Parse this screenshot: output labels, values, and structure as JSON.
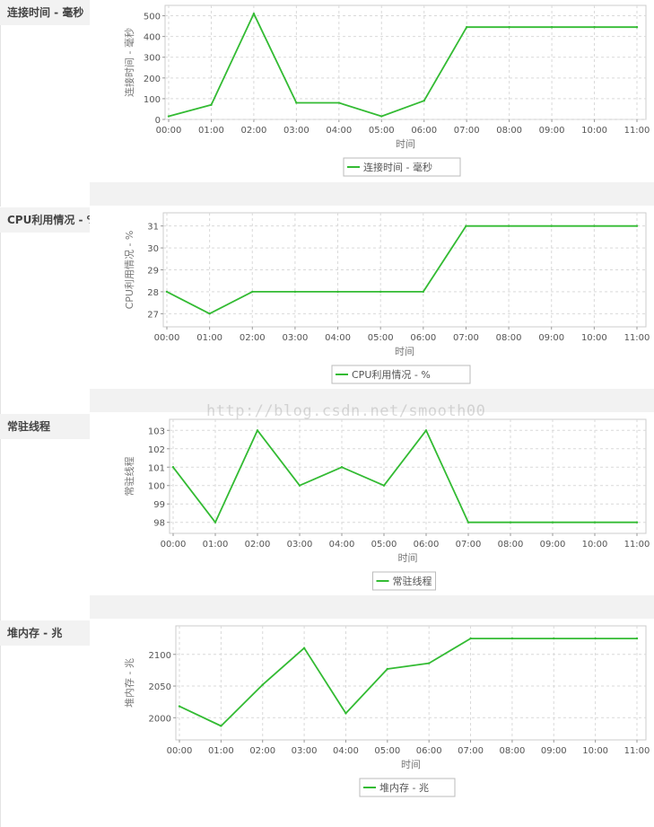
{
  "watermark": "http://blog.csdn.net/smooth00",
  "colors": {
    "line": "#33bb33",
    "grid": "#d9d9d9",
    "label_bg": "#f2f2f2"
  },
  "chart_data": [
    {
      "type": "line",
      "label": "连接时间 - 毫秒",
      "categories": [
        "00:00",
        "01:00",
        "02:00",
        "03:00",
        "04:00",
        "05:00",
        "06:00",
        "07:00",
        "08:00",
        "09:00",
        "10:00",
        "11:00"
      ],
      "series": [
        {
          "name": "连接时间 - 毫秒",
          "values": [
            15,
            70,
            510,
            80,
            80,
            15,
            90,
            445,
            445,
            445,
            445,
            445
          ]
        }
      ],
      "xlabel": "时间",
      "ylabel": "连接时间 - 毫秒",
      "ylim": [
        0,
        550
      ],
      "yticks": [
        0,
        100,
        200,
        300,
        400,
        500
      ],
      "grid": true,
      "legend_position": "bottom"
    },
    {
      "type": "line",
      "label": "CPU利用情况 - %",
      "categories": [
        "00:00",
        "01:00",
        "02:00",
        "03:00",
        "04:00",
        "05:00",
        "06:00",
        "07:00",
        "08:00",
        "09:00",
        "10:00",
        "11:00"
      ],
      "series": [
        {
          "name": "CPU利用情况 - %",
          "values": [
            28,
            27,
            28,
            28,
            28,
            28,
            28,
            31,
            31,
            31,
            31,
            31
          ]
        }
      ],
      "xlabel": "时间",
      "ylabel": "CPU利用情况 - %",
      "ylim": [
        26.4,
        31.6
      ],
      "yticks": [
        27,
        28,
        29,
        30,
        31
      ],
      "grid": true,
      "legend_position": "bottom"
    },
    {
      "type": "line",
      "label": "常驻线程",
      "categories": [
        "00:00",
        "01:00",
        "02:00",
        "03:00",
        "04:00",
        "05:00",
        "06:00",
        "07:00",
        "08:00",
        "09:00",
        "10:00",
        "11:00"
      ],
      "series": [
        {
          "name": "常驻线程",
          "values": [
            101,
            98,
            103,
            100,
            101,
            100,
            103,
            98,
            98,
            98,
            98,
            98
          ]
        }
      ],
      "xlabel": "时间",
      "ylabel": "常驻线程",
      "ylim": [
        97.4,
        103.6
      ],
      "yticks": [
        98,
        99,
        100,
        101,
        102,
        103
      ],
      "grid": true,
      "legend_position": "bottom"
    },
    {
      "type": "line",
      "label": "堆内存 - 兆",
      "categories": [
        "00:00",
        "01:00",
        "02:00",
        "03:00",
        "04:00",
        "05:00",
        "06:00",
        "07:00",
        "08:00",
        "09:00",
        "10:00",
        "11:00"
      ],
      "series": [
        {
          "name": "堆内存 - 兆",
          "values": [
            2018,
            1987,
            2052,
            2110,
            2007,
            2077,
            2086,
            2125,
            2125,
            2125,
            2125,
            2125
          ]
        }
      ],
      "xlabel": "时间",
      "ylabel": "堆内存 - 兆",
      "ylim": [
        1965,
        2145
      ],
      "yticks": [
        2000,
        2050,
        2100
      ],
      "grid": true,
      "legend_position": "bottom"
    }
  ]
}
